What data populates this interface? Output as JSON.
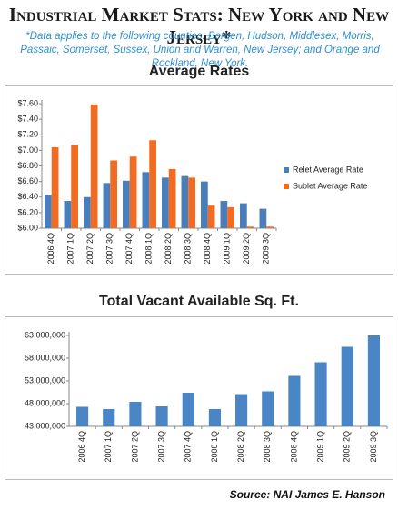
{
  "header": {
    "title": "Industrial Market Stats: New York and New Jersey*",
    "note": "*Data applies to the following counties: Bergen, Hudson, Middlesex, Morris, Passaic, Somerset, Sussex, Union and Warren, New Jersey; and Orange and Rockland, New York."
  },
  "chart_data": [
    {
      "type": "bar",
      "title": "Average Rates",
      "categories": [
        "2006 4Q",
        "2007 1Q",
        "2007 2Q",
        "2007 3Q",
        "2007 4Q",
        "2008 1Q",
        "2008 2Q",
        "2008 3Q",
        "2008 4Q",
        "2009 1Q",
        "2009 2Q",
        "2009 3Q"
      ],
      "series": [
        {
          "name": "Relet Average Rate",
          "color": "#4a7ebb",
          "values": [
            6.43,
            6.35,
            6.4,
            6.58,
            6.61,
            6.72,
            6.65,
            6.67,
            6.6,
            6.35,
            6.32,
            6.25
          ]
        },
        {
          "name": "Sublet Average Rate",
          "color": "#f26b21",
          "values": [
            7.04,
            7.07,
            7.59,
            6.87,
            6.92,
            7.13,
            6.76,
            6.65,
            6.29,
            6.27,
            6.02,
            6.02
          ]
        }
      ],
      "ylim": [
        6.0,
        7.6
      ],
      "yticks": [
        {
          "value": 6.0,
          "label": "$6.00"
        },
        {
          "value": 6.2,
          "label": "$6.20"
        },
        {
          "value": 6.4,
          "label": "$6.40"
        },
        {
          "value": 6.6,
          "label": "$6.60"
        },
        {
          "value": 6.8,
          "label": "$6.80"
        },
        {
          "value": 7.0,
          "label": "$7.00"
        },
        {
          "value": 7.2,
          "label": "$7.20"
        },
        {
          "value": 7.4,
          "label": "$7.40"
        },
        {
          "value": 7.6,
          "label": "$7.60"
        }
      ],
      "grid": false,
      "legend": "right"
    },
    {
      "type": "bar",
      "title": "Total Vacant Available Sq. Ft.",
      "categories": [
        "2006 4Q",
        "2007 1Q",
        "2007 2Q",
        "2007 3Q",
        "2007 4Q",
        "2008 1Q",
        "2008 2Q",
        "2008 3Q",
        "2008 4Q",
        "2009 1Q",
        "2009 2Q",
        "2009 3Q"
      ],
      "values": [
        47300000,
        46800000,
        48400000,
        47400000,
        50400000,
        46800000,
        50100000,
        50700000,
        54100000,
        57100000,
        60500000,
        63000000
      ],
      "color": "#4a86c5",
      "ylim": [
        43000000,
        63000000
      ],
      "yticks": [
        {
          "value": 43000000,
          "label": "43,000,000"
        },
        {
          "value": 48000000,
          "label": "48,000,000"
        },
        {
          "value": 53000000,
          "label": "53,000,000"
        },
        {
          "value": 58000000,
          "label": "58,000,000"
        },
        {
          "value": 63000000,
          "label": "63,000,000"
        }
      ],
      "grid": false
    }
  ],
  "source": "Source: NAI James E. Hanson"
}
